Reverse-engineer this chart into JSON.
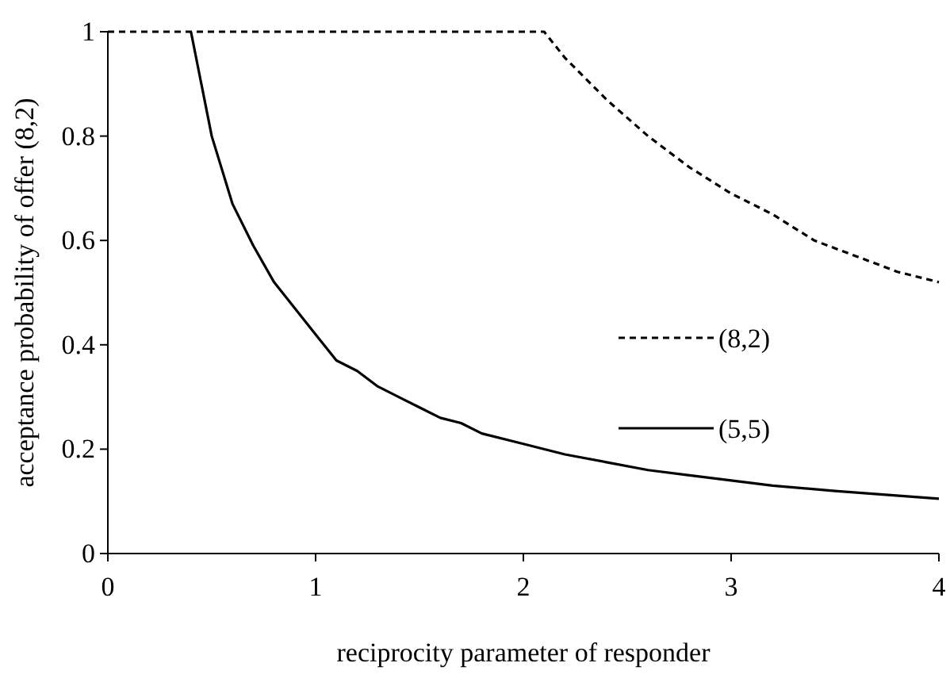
{
  "chart_data": {
    "type": "line",
    "xlabel": "reciprocity parameter of responder",
    "ylabel": "acceptance probability of offer (8,2)",
    "xlim": [
      0,
      4
    ],
    "xticks": [
      0,
      1,
      2,
      3,
      4
    ],
    "ylim": [
      0,
      1
    ],
    "yticks": [
      0,
      0.2,
      0.4,
      0.6,
      0.8,
      1
    ],
    "grid": false,
    "legend": "right",
    "marker": "none",
    "series": [
      {
        "name": "(8,2)",
        "color": "#000000",
        "line_style": "dotted",
        "x": [
          0,
          0.5,
          1,
          1.5,
          2,
          2.1,
          2.2,
          2.4,
          2.6,
          2.8,
          3,
          3.2,
          3.4,
          3.6,
          3.8,
          4
        ],
        "values": [
          1,
          1,
          1,
          1,
          1,
          1,
          0.95,
          0.87,
          0.8,
          0.74,
          0.69,
          0.65,
          0.6,
          0.57,
          0.54,
          0.52
        ]
      },
      {
        "name": "(5,5)",
        "color": "#000000",
        "line_style": "solid",
        "x": [
          0.4,
          0.5,
          0.6,
          0.7,
          0.8,
          0.9,
          1,
          1.1,
          1.2,
          1.3,
          1.4,
          1.5,
          1.6,
          1.7,
          1.8,
          2,
          2.2,
          2.4,
          2.6,
          2.8,
          3,
          3.2,
          3.5,
          4
        ],
        "values": [
          1,
          0.8,
          0.67,
          0.59,
          0.52,
          0.47,
          0.42,
          0.37,
          0.35,
          0.32,
          0.3,
          0.28,
          0.26,
          0.25,
          0.23,
          0.21,
          0.19,
          0.175,
          0.16,
          0.15,
          0.14,
          0.13,
          0.12,
          0.105
        ]
      }
    ]
  }
}
